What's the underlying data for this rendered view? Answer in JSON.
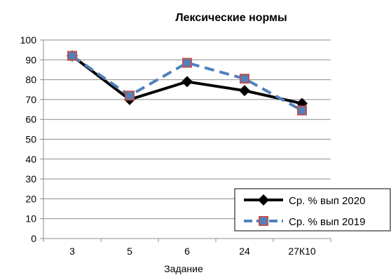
{
  "chart_data": {
    "type": "line",
    "title": "Лексические нормы",
    "xlabel": "Задание",
    "ylabel": "",
    "categories": [
      "3",
      "5",
      "6",
      "24",
      "27К10"
    ],
    "ylim": [
      0,
      100
    ],
    "ytick_step": 10,
    "grid": true,
    "legend_position": "bottom-right",
    "series": [
      {
        "name": "Ср. % вып 2020",
        "values": [
          92,
          70,
          79,
          74.5,
          68
        ],
        "color": "#000000",
        "line_style": "solid",
        "marker": "diamond"
      },
      {
        "name": "Ср. % вып 2019",
        "values": [
          92,
          72,
          88.5,
          80.5,
          64.5
        ],
        "color": "#4f81bd",
        "marker_border": "#c0504d",
        "line_style": "dashed",
        "marker": "square"
      }
    ]
  }
}
